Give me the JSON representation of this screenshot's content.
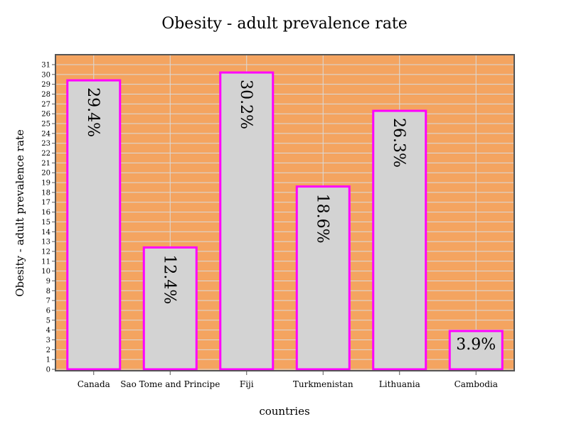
{
  "chart_data": {
    "type": "bar",
    "title": "Obesity - adult prevalence rate",
    "xlabel": "countries",
    "ylabel": "Obesity - adult prevalence rate",
    "categories": [
      "Canada",
      "Sao Tome and Principe",
      "Fiji",
      "Turkmenistan",
      "Lithuania",
      "Cambodia"
    ],
    "values": [
      29.4,
      12.4,
      30.2,
      18.6,
      26.3,
      3.9
    ],
    "data_labels": [
      "29.4%",
      "12.4%",
      "30.2%",
      "18.6%",
      "26.3%",
      "3.9%"
    ],
    "ylim": [
      0,
      31
    ],
    "yticks": [
      0,
      1,
      2,
      3,
      4,
      5,
      6,
      7,
      8,
      9,
      10,
      11,
      12,
      13,
      14,
      15,
      16,
      17,
      18,
      19,
      20,
      21,
      22,
      23,
      24,
      25,
      26,
      27,
      28,
      29,
      30,
      31
    ],
    "grid": true,
    "colors": {
      "plot_background": "#f4a460",
      "bar_fill": "#d3d3d3",
      "bar_stroke": "#ff00ff",
      "grid": "#d9d9d9",
      "axis": "#555555"
    }
  }
}
